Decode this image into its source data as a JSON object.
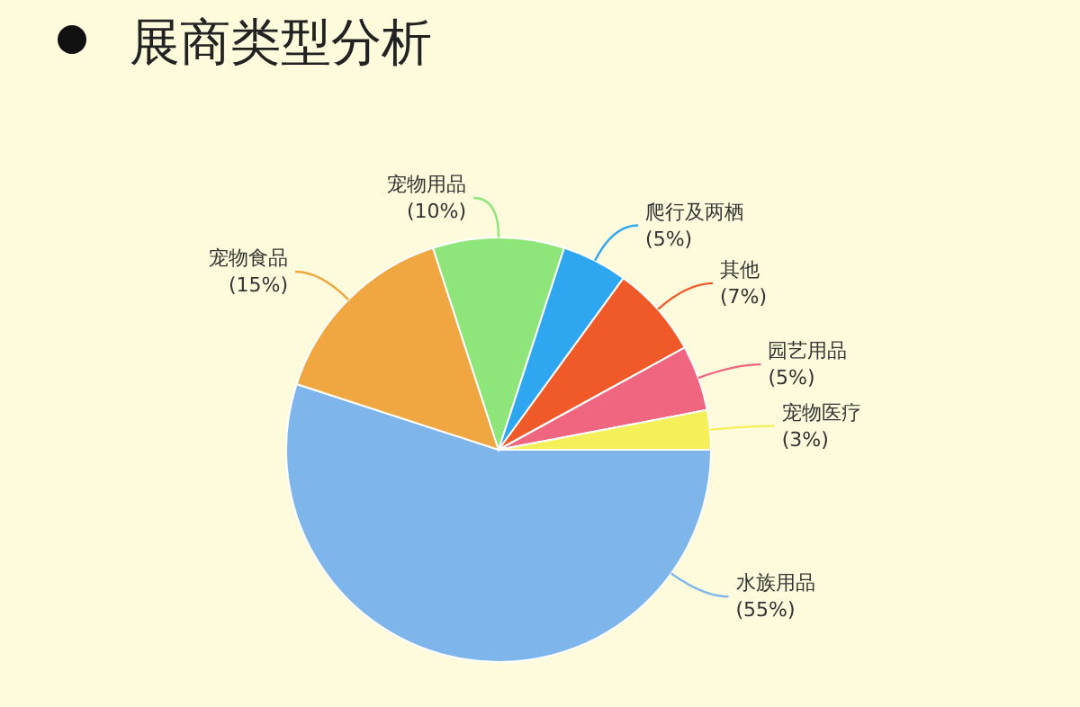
{
  "chart_data": {
    "type": "pie",
    "title": "展商类型分析",
    "categories": [
      "水族用品",
      "宠物食品",
      "宠物用品",
      "爬行及两栖",
      "其他",
      "园艺用品",
      "宠物医疗"
    ],
    "values": [
      55,
      15,
      10,
      5,
      7,
      5,
      3
    ],
    "value_labels": [
      "(55%)",
      "(15%)",
      "(10%)",
      "(5%)",
      "(7%)",
      "(5%)",
      "(3%)"
    ],
    "colors": [
      "#7eb6ec",
      "#f0a742",
      "#8ee57a",
      "#2fa6f0",
      "#f05a28",
      "#f06580",
      "#f5f05a"
    ]
  }
}
